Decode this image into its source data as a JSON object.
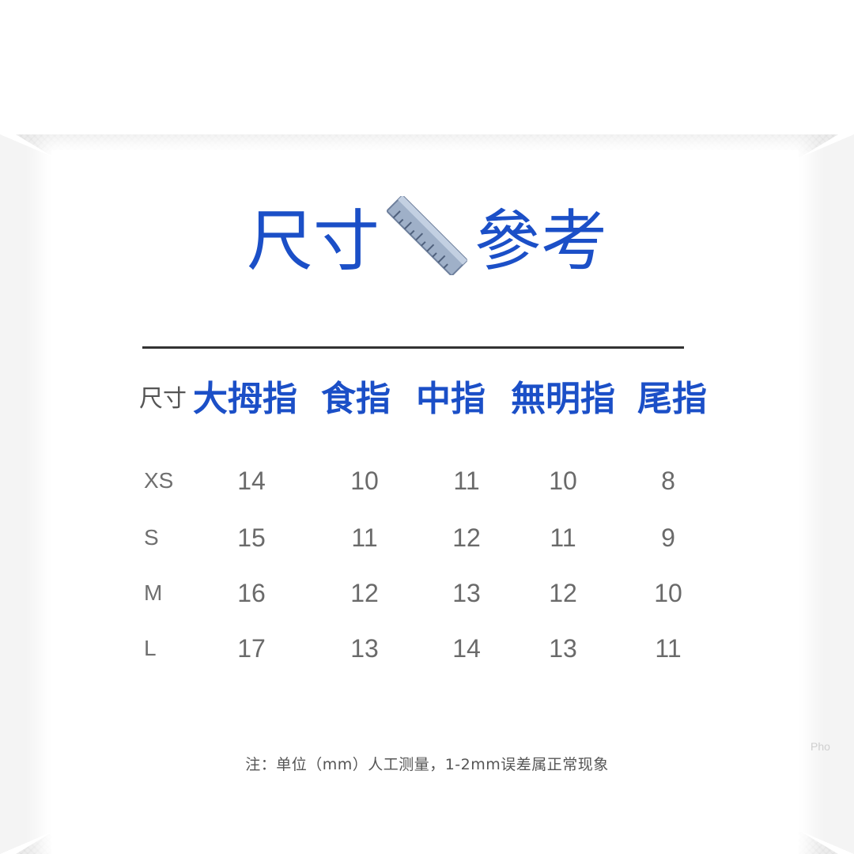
{
  "title": {
    "left": "尺寸",
    "right": "參考",
    "icon": "ruler-icon"
  },
  "table": {
    "size_header": "尺寸",
    "fingers": [
      "大拇指",
      "食指",
      "中指",
      "無明指",
      "尾指"
    ],
    "rows": [
      {
        "size": "XS",
        "values": [
          "14",
          "10",
          "11",
          "10",
          "8"
        ]
      },
      {
        "size": "S",
        "values": [
          "15",
          "11",
          "12",
          "11",
          "9"
        ]
      },
      {
        "size": "M",
        "values": [
          "16",
          "12",
          "13",
          "12",
          "10"
        ]
      },
      {
        "size": "L",
        "values": [
          "17",
          "13",
          "14",
          "13",
          "11"
        ]
      }
    ]
  },
  "note": "注：单位（mm）人工测量，1-2mm误差属正常现象",
  "watermark": "Pho",
  "colors": {
    "accent": "#1b4fc7",
    "text_gray": "#6a6a6a",
    "background": "#ececec"
  }
}
